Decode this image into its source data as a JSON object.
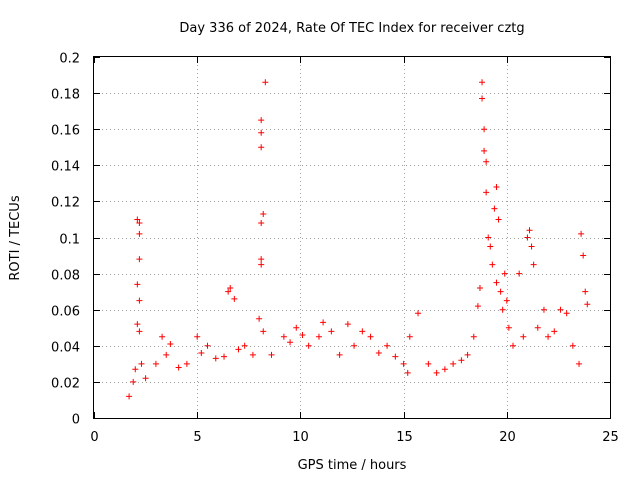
{
  "chart_data": {
    "type": "scatter",
    "title": "Day 336 of 2024, Rate Of TEC Index for receiver cztg",
    "xlabel": "GPS time / hours",
    "ylabel": "ROTI / TECUs",
    "xlim": [
      0,
      25
    ],
    "ylim": [
      0,
      0.2
    ],
    "xticks": [
      0,
      5,
      10,
      15,
      20,
      25
    ],
    "yticks": [
      0,
      0.02,
      0.04,
      0.06,
      0.08,
      0.1,
      0.12,
      0.14,
      0.16,
      0.18,
      0.2
    ],
    "xtick_labels": [
      "0",
      "5",
      "10",
      "15",
      "20",
      "25"
    ],
    "ytick_labels": [
      "0",
      "0.02",
      "0.04",
      "0.06",
      "0.08",
      "0.1",
      "0.12",
      "0.14",
      "0.16",
      "0.18",
      "0.2"
    ],
    "grid": true,
    "marker": "+",
    "color": "#ff0000",
    "series": [
      {
        "name": "ROTI",
        "x": [
          1.7,
          1.9,
          2.0,
          2.1,
          2.2,
          2.2,
          2.2,
          2.1,
          2.2,
          2.1,
          2.2,
          2.3,
          2.5,
          3.0,
          3.3,
          3.5,
          3.7,
          4.1,
          4.5,
          5.0,
          5.2,
          5.5,
          5.9,
          6.3,
          6.5,
          6.6,
          6.8,
          7.0,
          7.3,
          7.7,
          8.0,
          8.1,
          8.1,
          8.1,
          8.2,
          8.3,
          8.1,
          8.1,
          8.1,
          8.2,
          8.6,
          9.2,
          9.5,
          9.8,
          10.1,
          10.4,
          10.9,
          11.1,
          11.5,
          11.9,
          12.3,
          12.6,
          13.0,
          13.4,
          13.8,
          14.2,
          14.6,
          15.0,
          15.2,
          15.3,
          15.7,
          16.2,
          16.6,
          17.0,
          17.4,
          17.8,
          18.1,
          18.4,
          18.6,
          18.7,
          18.8,
          18.8,
          18.9,
          18.9,
          19.0,
          19.0,
          19.1,
          19.2,
          19.3,
          19.4,
          19.5,
          19.5,
          19.6,
          19.7,
          19.8,
          19.9,
          20.0,
          20.1,
          20.3,
          20.6,
          20.8,
          21.0,
          21.1,
          21.2,
          21.3,
          21.5,
          21.8,
          22.0,
          22.3,
          22.6,
          22.9,
          23.2,
          23.5,
          23.6,
          23.7,
          23.8,
          23.9
        ],
        "values": [
          0.012,
          0.02,
          0.027,
          0.11,
          0.108,
          0.102,
          0.088,
          0.074,
          0.065,
          0.052,
          0.048,
          0.03,
          0.022,
          0.03,
          0.045,
          0.035,
          0.041,
          0.028,
          0.03,
          0.045,
          0.036,
          0.04,
          0.033,
          0.034,
          0.07,
          0.072,
          0.066,
          0.038,
          0.04,
          0.035,
          0.055,
          0.165,
          0.158,
          0.15,
          0.113,
          0.186,
          0.108,
          0.088,
          0.085,
          0.048,
          0.035,
          0.045,
          0.042,
          0.05,
          0.046,
          0.04,
          0.045,
          0.053,
          0.048,
          0.035,
          0.052,
          0.04,
          0.048,
          0.045,
          0.036,
          0.04,
          0.034,
          0.03,
          0.025,
          0.045,
          0.058,
          0.03,
          0.025,
          0.027,
          0.03,
          0.032,
          0.035,
          0.045,
          0.062,
          0.072,
          0.186,
          0.177,
          0.16,
          0.148,
          0.142,
          0.125,
          0.1,
          0.095,
          0.085,
          0.116,
          0.128,
          0.075,
          0.11,
          0.07,
          0.06,
          0.08,
          0.065,
          0.05,
          0.04,
          0.08,
          0.045,
          0.1,
          0.104,
          0.095,
          0.085,
          0.05,
          0.06,
          0.045,
          0.048,
          0.06,
          0.058,
          0.04,
          0.03,
          0.102,
          0.09,
          0.07,
          0.063
        ]
      }
    ]
  }
}
